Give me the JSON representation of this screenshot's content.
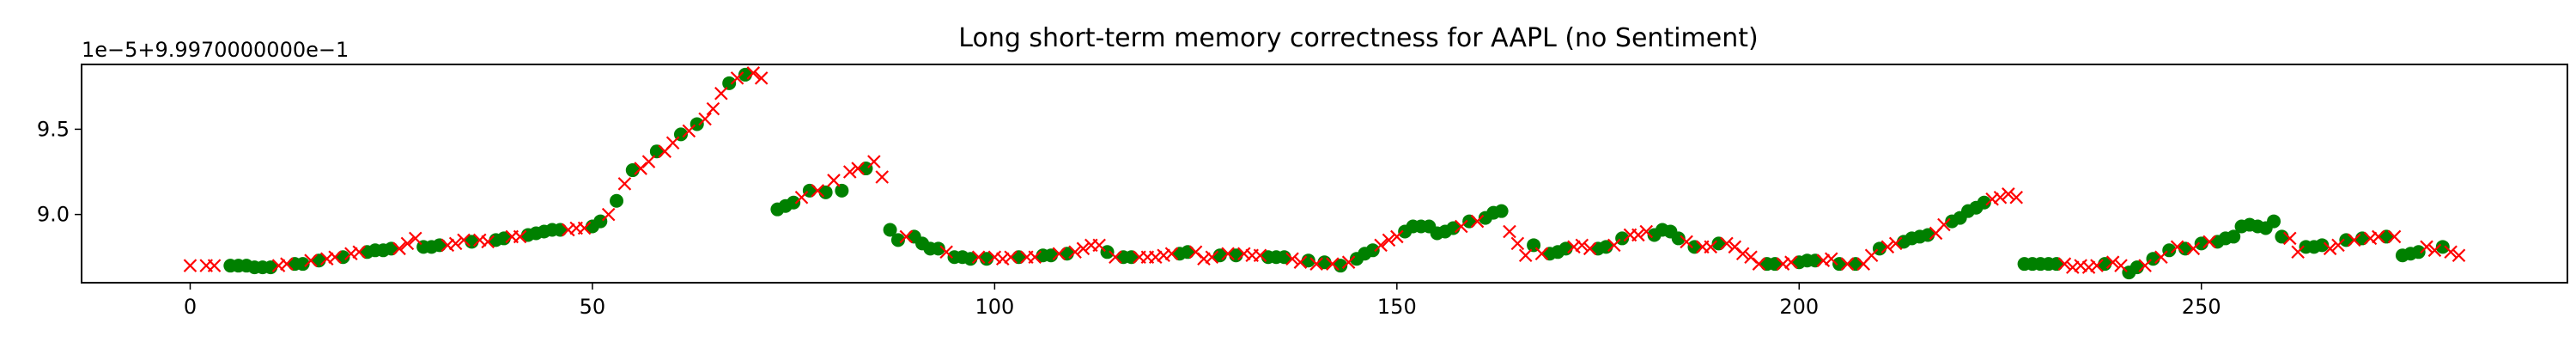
{
  "chart_data": {
    "type": "scatter",
    "title": "Long short-term memory correctness for AAPL (no Sentiment)",
    "offset_label": "1e−5+9.9970000000e−1",
    "xlabel": "",
    "ylabel": "",
    "xlim": [
      -13.5,
      295.5
    ],
    "ylim": [
      8.6,
      9.88
    ],
    "x_ticks": [
      0,
      50,
      100,
      150,
      200,
      250
    ],
    "x_tick_labels": [
      "0",
      "50",
      "100",
      "150",
      "200",
      "250"
    ],
    "y_ticks": [
      9.0,
      9.5
    ],
    "y_tick_labels": [
      "9.0",
      "9.5"
    ],
    "grid": false,
    "legend": "none",
    "colors": {
      "correct": "#008000",
      "incorrect": "#ff0000"
    },
    "series": [
      {
        "marker": "o",
        "color": "#008000",
        "points": [
          [
            5,
            8.7
          ],
          [
            6,
            8.7
          ],
          [
            7,
            8.7
          ],
          [
            8,
            8.69
          ],
          [
            9,
            8.69
          ],
          [
            10,
            8.69
          ],
          [
            13,
            8.71
          ],
          [
            14,
            8.71
          ],
          [
            16,
            8.73
          ],
          [
            19,
            8.75
          ],
          [
            22,
            8.78
          ],
          [
            23,
            8.79
          ],
          [
            24,
            8.79
          ],
          [
            25,
            8.8
          ],
          [
            29,
            8.81
          ],
          [
            30,
            8.81
          ],
          [
            31,
            8.82
          ],
          [
            35,
            8.84
          ],
          [
            38,
            8.85
          ],
          [
            39,
            8.86
          ],
          [
            42,
            8.88
          ],
          [
            43,
            8.89
          ],
          [
            44,
            8.9
          ],
          [
            45,
            8.91
          ],
          [
            46,
            8.91
          ],
          [
            50,
            8.93
          ],
          [
            51,
            8.96
          ],
          [
            53,
            9.08
          ],
          [
            55,
            9.26
          ],
          [
            58,
            9.37
          ],
          [
            61,
            9.47
          ],
          [
            63,
            9.53
          ],
          [
            67,
            9.77
          ],
          [
            69,
            9.82
          ],
          [
            73,
            9.03
          ],
          [
            74,
            9.05
          ],
          [
            75,
            9.07
          ],
          [
            77,
            9.14
          ],
          [
            79,
            9.13
          ],
          [
            81,
            9.14
          ],
          [
            84,
            9.27
          ],
          [
            87,
            8.91
          ],
          [
            88,
            8.85
          ],
          [
            90,
            8.87
          ],
          [
            91,
            8.83
          ],
          [
            92,
            8.8
          ],
          [
            93,
            8.8
          ],
          [
            95,
            8.75
          ],
          [
            96,
            8.75
          ],
          [
            97,
            8.74
          ],
          [
            99,
            8.74
          ],
          [
            103,
            8.75
          ],
          [
            106,
            8.76
          ],
          [
            107,
            8.76
          ],
          [
            109,
            8.77
          ],
          [
            114,
            8.78
          ],
          [
            116,
            8.75
          ],
          [
            117,
            8.75
          ],
          [
            123,
            8.77
          ],
          [
            124,
            8.78
          ],
          [
            128,
            8.76
          ],
          [
            130,
            8.76
          ],
          [
            134,
            8.75
          ],
          [
            135,
            8.75
          ],
          [
            136,
            8.75
          ],
          [
            139,
            8.73
          ],
          [
            141,
            8.72
          ],
          [
            143,
            8.7
          ],
          [
            145,
            8.74
          ],
          [
            146,
            8.77
          ],
          [
            147,
            8.79
          ],
          [
            151,
            8.9
          ],
          [
            152,
            8.93
          ],
          [
            153,
            8.93
          ],
          [
            154,
            8.93
          ],
          [
            155,
            8.89
          ],
          [
            156,
            8.9
          ],
          [
            157,
            8.92
          ],
          [
            159,
            8.96
          ],
          [
            161,
            8.98
          ],
          [
            162,
            9.01
          ],
          [
            163,
            9.02
          ],
          [
            167,
            8.82
          ],
          [
            169,
            8.77
          ],
          [
            170,
            8.78
          ],
          [
            171,
            8.8
          ],
          [
            175,
            8.8
          ],
          [
            176,
            8.81
          ],
          [
            178,
            8.86
          ],
          [
            182,
            8.88
          ],
          [
            183,
            8.91
          ],
          [
            184,
            8.9
          ],
          [
            185,
            8.86
          ],
          [
            187,
            8.81
          ],
          [
            190,
            8.83
          ],
          [
            196,
            8.71
          ],
          [
            197,
            8.71
          ],
          [
            200,
            8.72
          ],
          [
            201,
            8.73
          ],
          [
            202,
            8.73
          ],
          [
            205,
            8.71
          ],
          [
            207,
            8.71
          ],
          [
            210,
            8.8
          ],
          [
            213,
            8.84
          ],
          [
            214,
            8.86
          ],
          [
            215,
            8.87
          ],
          [
            216,
            8.88
          ],
          [
            219,
            8.96
          ],
          [
            220,
            8.98
          ],
          [
            221,
            9.02
          ],
          [
            222,
            9.04
          ],
          [
            223,
            9.07
          ],
          [
            228,
            8.71
          ],
          [
            229,
            8.71
          ],
          [
            230,
            8.71
          ],
          [
            231,
            8.71
          ],
          [
            232,
            8.71
          ],
          [
            238,
            8.71
          ],
          [
            241,
            8.66
          ],
          [
            242,
            8.69
          ],
          [
            244,
            8.74
          ],
          [
            246,
            8.79
          ],
          [
            248,
            8.8
          ],
          [
            250,
            8.83
          ],
          [
            252,
            8.84
          ],
          [
            253,
            8.86
          ],
          [
            254,
            8.87
          ],
          [
            255,
            8.93
          ],
          [
            256,
            8.94
          ],
          [
            257,
            8.93
          ],
          [
            258,
            8.92
          ],
          [
            259,
            8.96
          ],
          [
            260,
            8.87
          ],
          [
            263,
            8.81
          ],
          [
            264,
            8.81
          ],
          [
            265,
            8.82
          ],
          [
            268,
            8.85
          ],
          [
            270,
            8.86
          ],
          [
            273,
            8.87
          ],
          [
            275,
            8.76
          ],
          [
            276,
            8.77
          ],
          [
            277,
            8.78
          ],
          [
            280,
            8.81
          ]
        ]
      },
      {
        "marker": "x",
        "color": "#ff0000",
        "points": [
          [
            0,
            8.7
          ],
          [
            2,
            8.7
          ],
          [
            3,
            8.7
          ],
          [
            11,
            8.7
          ],
          [
            12,
            8.71
          ],
          [
            15,
            8.73
          ],
          [
            17,
            8.74
          ],
          [
            18,
            8.75
          ],
          [
            20,
            8.77
          ],
          [
            21,
            8.78
          ],
          [
            26,
            8.8
          ],
          [
            27,
            8.83
          ],
          [
            28,
            8.86
          ],
          [
            32,
            8.82
          ],
          [
            33,
            8.83
          ],
          [
            34,
            8.85
          ],
          [
            36,
            8.85
          ],
          [
            37,
            8.84
          ],
          [
            40,
            8.87
          ],
          [
            41,
            8.87
          ],
          [
            47,
            8.91
          ],
          [
            48,
            8.92
          ],
          [
            49,
            8.92
          ],
          [
            52,
            9.0
          ],
          [
            54,
            9.18
          ],
          [
            56,
            9.27
          ],
          [
            57,
            9.31
          ],
          [
            59,
            9.37
          ],
          [
            60,
            9.42
          ],
          [
            62,
            9.49
          ],
          [
            64,
            9.56
          ],
          [
            65,
            9.62
          ],
          [
            66,
            9.71
          ],
          [
            68,
            9.8
          ],
          [
            70,
            9.83
          ],
          [
            71,
            9.8
          ],
          [
            76,
            9.1
          ],
          [
            78,
            9.14
          ],
          [
            80,
            9.2
          ],
          [
            82,
            9.25
          ],
          [
            83,
            9.27
          ],
          [
            85,
            9.31
          ],
          [
            86,
            9.22
          ],
          [
            89,
            8.87
          ],
          [
            94,
            8.78
          ],
          [
            98,
            8.75
          ],
          [
            100,
            8.75
          ],
          [
            101,
            8.74
          ],
          [
            102,
            8.75
          ],
          [
            104,
            8.75
          ],
          [
            105,
            8.75
          ],
          [
            108,
            8.77
          ],
          [
            110,
            8.78
          ],
          [
            111,
            8.8
          ],
          [
            112,
            8.82
          ],
          [
            113,
            8.82
          ],
          [
            115,
            8.75
          ],
          [
            118,
            8.75
          ],
          [
            119,
            8.75
          ],
          [
            120,
            8.75
          ],
          [
            121,
            8.76
          ],
          [
            122,
            8.77
          ],
          [
            125,
            8.78
          ],
          [
            126,
            8.74
          ],
          [
            127,
            8.75
          ],
          [
            129,
            8.77
          ],
          [
            131,
            8.77
          ],
          [
            132,
            8.76
          ],
          [
            133,
            8.76
          ],
          [
            137,
            8.74
          ],
          [
            138,
            8.72
          ],
          [
            140,
            8.71
          ],
          [
            142,
            8.71
          ],
          [
            144,
            8.72
          ],
          [
            148,
            8.82
          ],
          [
            149,
            8.85
          ],
          [
            150,
            8.87
          ],
          [
            158,
            8.93
          ],
          [
            160,
            8.96
          ],
          [
            164,
            8.9
          ],
          [
            165,
            8.83
          ],
          [
            166,
            8.76
          ],
          [
            168,
            8.77
          ],
          [
            172,
            8.81
          ],
          [
            173,
            8.82
          ],
          [
            174,
            8.8
          ],
          [
            177,
            8.82
          ],
          [
            179,
            8.88
          ],
          [
            180,
            8.88
          ],
          [
            181,
            8.9
          ],
          [
            186,
            8.84
          ],
          [
            188,
            8.81
          ],
          [
            189,
            8.81
          ],
          [
            191,
            8.83
          ],
          [
            192,
            8.81
          ],
          [
            193,
            8.77
          ],
          [
            194,
            8.75
          ],
          [
            195,
            8.71
          ],
          [
            198,
            8.71
          ],
          [
            199,
            8.72
          ],
          [
            203,
            8.73
          ],
          [
            204,
            8.74
          ],
          [
            206,
            8.71
          ],
          [
            208,
            8.71
          ],
          [
            209,
            8.76
          ],
          [
            211,
            8.81
          ],
          [
            212,
            8.83
          ],
          [
            217,
            8.89
          ],
          [
            218,
            8.94
          ],
          [
            224,
            9.09
          ],
          [
            225,
            9.1
          ],
          [
            226,
            9.12
          ],
          [
            227,
            9.1
          ],
          [
            233,
            8.71
          ],
          [
            234,
            8.69
          ],
          [
            235,
            8.7
          ],
          [
            236,
            8.69
          ],
          [
            237,
            8.7
          ],
          [
            239,
            8.72
          ],
          [
            240,
            8.7
          ],
          [
            243,
            8.7
          ],
          [
            245,
            8.75
          ],
          [
            247,
            8.81
          ],
          [
            249,
            8.8
          ],
          [
            251,
            8.84
          ],
          [
            261,
            8.86
          ],
          [
            262,
            8.78
          ],
          [
            266,
            8.8
          ],
          [
            267,
            8.82
          ],
          [
            269,
            8.85
          ],
          [
            271,
            8.86
          ],
          [
            272,
            8.87
          ],
          [
            274,
            8.87
          ],
          [
            278,
            8.81
          ],
          [
            279,
            8.79
          ],
          [
            281,
            8.78
          ],
          [
            282,
            8.76
          ]
        ]
      }
    ]
  }
}
